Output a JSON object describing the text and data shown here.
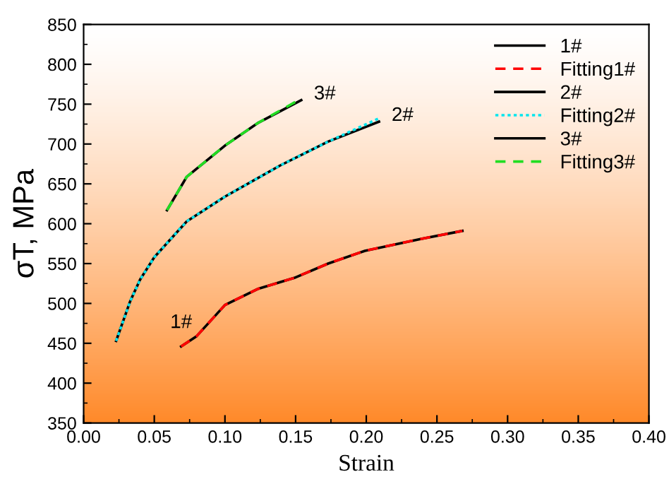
{
  "chart_data": {
    "type": "line",
    "xlabel": "Strain",
    "ylabel": "σT, MPa",
    "xlim": [
      0.0,
      0.4
    ],
    "xticks": [
      {
        "value": 0.0,
        "label": "0.00"
      },
      0.05,
      {
        "value": 0.1,
        "label": "0.10"
      },
      0.15,
      {
        "value": 0.2,
        "label": "0.20"
      },
      0.25,
      {
        "value": 0.3,
        "label": "0.30"
      },
      0.35,
      {
        "value": 0.4,
        "label": "0.40"
      }
    ],
    "ylim": [
      350,
      850
    ],
    "yticks": [
      350,
      400,
      450,
      500,
      550,
      600,
      650,
      700,
      750,
      800,
      850
    ],
    "grid": false,
    "legend": "top right",
    "series": [
      {
        "name": "1#",
        "color": "#000000",
        "line_style": "solid",
        "x": [
          0.069,
          0.08,
          0.1,
          0.123,
          0.149,
          0.173,
          0.199,
          0.239,
          0.268
        ],
        "values": [
          446,
          459,
          498,
          518,
          532,
          550,
          566,
          581,
          591
        ]
      },
      {
        "name": "Fitting1#",
        "color": "#ff0000",
        "line_style": "dashed",
        "x": [
          0.069,
          0.08,
          0.1,
          0.123,
          0.149,
          0.173,
          0.199,
          0.239,
          0.268
        ],
        "values": [
          446,
          459,
          498,
          518,
          532,
          550,
          566,
          581,
          591
        ]
      },
      {
        "name": "2#",
        "color": "#000000",
        "line_style": "solid",
        "x": [
          0.023,
          0.033,
          0.04,
          0.05,
          0.073,
          0.1,
          0.139,
          0.173,
          0.209
        ],
        "values": [
          453,
          503,
          530,
          558,
          603,
          634,
          673,
          703,
          728
        ]
      },
      {
        "name": "Fitting2#",
        "color": "#00e5ee",
        "line_style": "dotted",
        "x": [
          0.023,
          0.033,
          0.04,
          0.05,
          0.073,
          0.1,
          0.139,
          0.173,
          0.21
        ],
        "values": [
          453,
          503,
          530,
          558,
          603,
          634,
          673,
          703,
          733
        ]
      },
      {
        "name": "3#",
        "color": "#000000",
        "line_style": "solid",
        "x": [
          0.059,
          0.073,
          0.1,
          0.123,
          0.154
        ],
        "values": [
          617,
          659,
          698,
          726,
          755
        ]
      },
      {
        "name": "Fitting3#",
        "color": "#22dd22",
        "line_style": "dashed",
        "x": [
          0.059,
          0.073,
          0.1,
          0.123,
          0.15
        ],
        "values": [
          617,
          659,
          698,
          726,
          753
        ]
      }
    ],
    "annotations": [
      {
        "text": "1#",
        "x": 0.069,
        "y": 446
      },
      {
        "text": "2#",
        "x": 0.209,
        "y": 728
      },
      {
        "text": "3#",
        "x": 0.154,
        "y": 755
      }
    ]
  }
}
